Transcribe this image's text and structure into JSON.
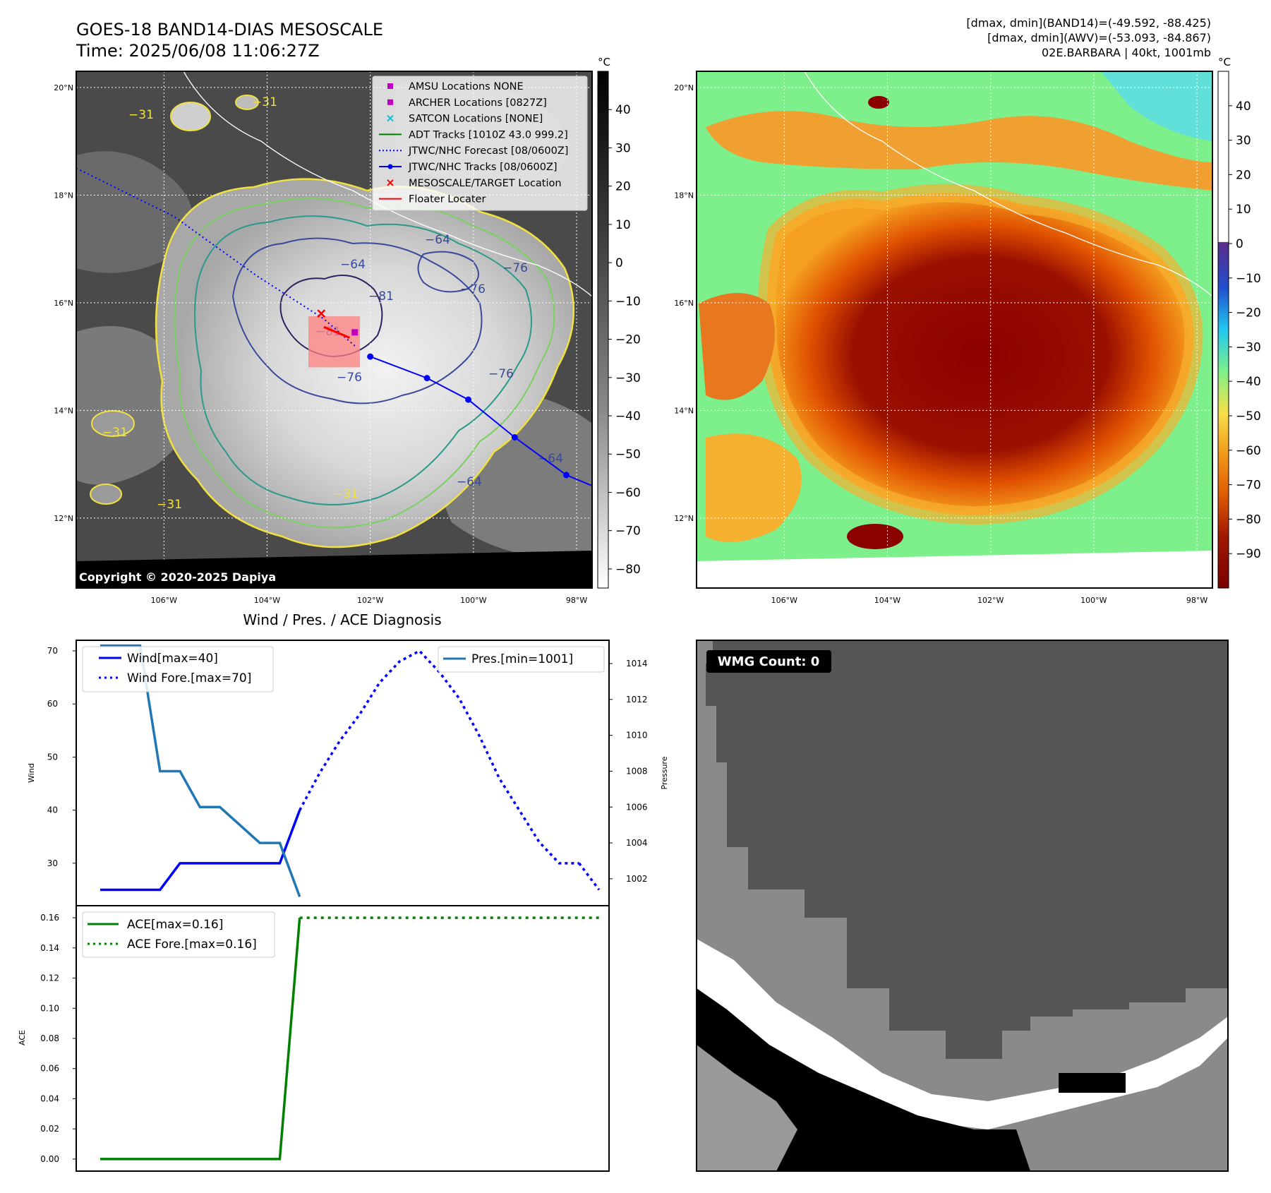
{
  "header": {
    "title_line1": "GOES-18 BAND14-DIAS MESOSCALE",
    "title_line2": "Time: 2025/06/08 11:06:27Z",
    "info_line1": "[dmax, dmin](BAND14)=(-49.592, -88.425)",
    "info_line2": "[dmax, dmin](AWV)=(-53.093, -84.867)",
    "info_line3": "02E.BARBARA | 40kt, 1001mb"
  },
  "map_ir": {
    "lat_labels": [
      "20°N",
      "18°N",
      "16°N",
      "14°N",
      "12°N"
    ],
    "lon_labels": [
      "106°W",
      "104°W",
      "102°W",
      "100°W",
      "98°W"
    ],
    "lat_values": [
      20,
      18,
      16,
      14,
      12
    ],
    "lon_values": [
      -106,
      -104,
      -102,
      -100,
      -98
    ],
    "extent": {
      "lon": [
        -107.7,
        -97.7
      ],
      "lat": [
        10.7,
        20.3
      ]
    },
    "colorbar_unit": "°C",
    "colorbar_ticks": [
      "40",
      "30",
      "20",
      "10",
      "0",
      "−10",
      "−20",
      "−30",
      "−40",
      "−50",
      "−60",
      "−70",
      "−80"
    ],
    "colorbar_values": [
      40,
      30,
      20,
      10,
      0,
      -10,
      -20,
      -30,
      -40,
      -50,
      -60,
      -70,
      -80
    ],
    "colorbar_range": [
      -85,
      50
    ],
    "contour_labels": [
      "−31",
      "−31",
      "−31",
      "−31",
      "−64",
      "−76",
      "−76",
      "−81",
      "−81",
      "−76",
      "−64",
      "−76",
      "−64",
      "−64",
      "−31"
    ],
    "copyright": "Copyright © 2020-2025 Dapiya",
    "legend": [
      {
        "label": "AMSU Locations NONE",
        "marker": "square",
        "color": "#c000c0"
      },
      {
        "label": "ARCHER Locations [0827Z]",
        "marker": "square",
        "color": "#c000c0"
      },
      {
        "label": "SATCON Locations [NONE]",
        "marker": "x",
        "color": "#17becf"
      },
      {
        "label": "ADT Tracks [1010Z 43.0 999.2]",
        "marker": "line",
        "color": "#008000"
      },
      {
        "label": "JTWC/NHC Forecast [08/0600Z]",
        "marker": "dotted",
        "color": "#0000ff"
      },
      {
        "label": "JTWC/NHC Tracks [08/0600Z]",
        "marker": "line-dot",
        "color": "#0000ff"
      },
      {
        "label": "MESOSCALE/TARGET Location",
        "marker": "x",
        "color": "#ff0000"
      },
      {
        "label": "Floater Locater",
        "marker": "line",
        "color": "#ff0000"
      }
    ],
    "track_points": [
      {
        "lon": -102.0,
        "lat": 15.0
      },
      {
        "lon": -100.9,
        "lat": 14.6
      },
      {
        "lon": -100.1,
        "lat": 14.2
      },
      {
        "lon": -99.2,
        "lat": 13.5
      },
      {
        "lon": -98.2,
        "lat": 12.8
      },
      {
        "lon": -97.7,
        "lat": 12.6
      }
    ],
    "forecast_points": [
      {
        "lon": -107.7,
        "lat": 18.5
      },
      {
        "lon": -105.8,
        "lat": 17.6
      },
      {
        "lon": -104.2,
        "lat": 16.5
      },
      {
        "lon": -102.9,
        "lat": 15.7
      },
      {
        "lon": -102.3,
        "lat": 15.2
      }
    ],
    "archer_location": {
      "lon": -102.3,
      "lat": 15.45
    },
    "target_location": {
      "lon": -102.95,
      "lat": 15.8
    },
    "floater_box": {
      "lon": [
        -103.2,
        -102.2
      ],
      "lat": [
        14.8,
        15.75
      ]
    }
  },
  "map_awv": {
    "lat_labels": [
      "20°N",
      "18°N",
      "16°N",
      "14°N",
      "12°N"
    ],
    "lon_labels": [
      "106°W",
      "104°W",
      "102°W",
      "100°W",
      "98°W"
    ],
    "colorbar_unit": "°C",
    "colorbar_ticks": [
      "40",
      "30",
      "20",
      "10",
      "0",
      "−10",
      "−20",
      "−30",
      "−40",
      "−50",
      "−60",
      "−70",
      "−80",
      "−90"
    ],
    "colorbar_values": [
      40,
      30,
      20,
      10,
      0,
      -10,
      -20,
      -30,
      -40,
      -50,
      -60,
      -70,
      -80,
      -90
    ],
    "colorbar_range": [
      -100,
      50
    ]
  },
  "chart_data": [
    {
      "type": "line",
      "title": "Wind / Pres. / ACE Diagnosis",
      "ylabel": "Wind",
      "y2label": "Pressure",
      "ylim": [
        22,
        72
      ],
      "y2lim": [
        1000.5,
        1015.3
      ],
      "yticks": [
        30,
        40,
        50,
        60,
        70
      ],
      "y2ticks": [
        1002,
        1004,
        1006,
        1008,
        1010,
        1012,
        1014
      ],
      "legend_left": [
        "Wind[max=40]",
        "Wind Fore.[max=70]"
      ],
      "legend_right": [
        "Pres.[min=1001]"
      ],
      "series": [
        {
          "name": "Wind[max=40]",
          "axis": "left",
          "style": "solid",
          "color": "#0000ff",
          "x": [
            0,
            3,
            4,
            9,
            10
          ],
          "values": [
            25,
            25,
            30,
            30,
            40
          ]
        },
        {
          "name": "Wind Fore.[max=70]",
          "axis": "left",
          "style": "dotted",
          "color": "#0000ff",
          "x": [
            10,
            11,
            12,
            13,
            14,
            15,
            16,
            17,
            18,
            19,
            20,
            21,
            22,
            23,
            24
          ],
          "values": [
            40,
            47,
            53,
            58,
            64,
            68,
            70,
            66,
            61,
            54,
            46,
            40,
            34,
            30,
            30
          ]
        },
        {
          "name": "Pres.[min=1001]",
          "axis": "right",
          "style": "solid",
          "color": "#1f77b4",
          "x": [
            0,
            2,
            3,
            4,
            5,
            6,
            7,
            8,
            9,
            10
          ],
          "values": [
            1015,
            1015,
            1008,
            1008,
            1006,
            1006,
            1005,
            1004,
            1004,
            1001
          ]
        }
      ],
      "xlim": [
        -1.2,
        25.5
      ],
      "end_point": {
        "x": 25,
        "y": 25
      }
    },
    {
      "type": "line",
      "ylabel": "ACE",
      "ylim": [
        -0.008,
        0.168
      ],
      "yticks": [
        "0.00",
        "0.02",
        "0.04",
        "0.06",
        "0.08",
        "0.10",
        "0.12",
        "0.14",
        "0.16"
      ],
      "ytick_values": [
        0,
        0.02,
        0.04,
        0.06,
        0.08,
        0.1,
        0.12,
        0.14,
        0.16
      ],
      "legend": [
        "ACE[max=0.16]",
        "ACE Fore.[max=0.16]"
      ],
      "series": [
        {
          "name": "ACE[max=0.16]",
          "style": "solid",
          "color": "#008000",
          "x": [
            0,
            9,
            10
          ],
          "values": [
            0.0,
            0.0,
            0.16
          ]
        },
        {
          "name": "ACE Fore.[max=0.16]",
          "style": "dotted",
          "color": "#008000",
          "x": [
            10,
            25
          ],
          "values": [
            0.16,
            0.16
          ]
        }
      ],
      "xlim": [
        -1.2,
        25.5
      ]
    }
  ],
  "wmg": {
    "badge": "WMG Count: 0"
  }
}
